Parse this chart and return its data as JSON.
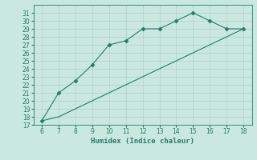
{
  "line1_x": [
    6,
    7,
    8,
    9,
    10,
    11,
    12,
    13,
    14,
    15,
    16,
    17,
    18
  ],
  "line1_y": [
    17.5,
    21.0,
    22.5,
    24.5,
    27.0,
    27.5,
    29.0,
    29.0,
    30.0,
    31.0,
    30.0,
    29.0,
    29.0
  ],
  "line2_x": [
    6,
    7,
    8,
    9,
    10,
    11,
    12,
    13,
    14,
    15,
    16,
    17,
    18
  ],
  "line2_y": [
    17.5,
    18.0,
    19.0,
    20.0,
    21.0,
    22.0,
    23.0,
    24.0,
    25.0,
    26.0,
    27.0,
    28.0,
    29.0
  ],
  "line_color": "#2a7a6a",
  "bg_color": "#c8e8e0",
  "grid_color": "#b0d0c8",
  "xlabel": "Humidex (Indice chaleur)",
  "xlim": [
    5.5,
    18.5
  ],
  "ylim": [
    17,
    32
  ],
  "xticks": [
    6,
    7,
    8,
    9,
    10,
    11,
    12,
    13,
    14,
    15,
    16,
    17,
    18
  ],
  "yticks": [
    17,
    18,
    19,
    20,
    21,
    22,
    23,
    24,
    25,
    26,
    27,
    28,
    29,
    30,
    31
  ],
  "tick_fontsize": 5.5,
  "xlabel_fontsize": 6.5,
  "marker": "D",
  "marker_size": 2.5,
  "linewidth": 0.8
}
